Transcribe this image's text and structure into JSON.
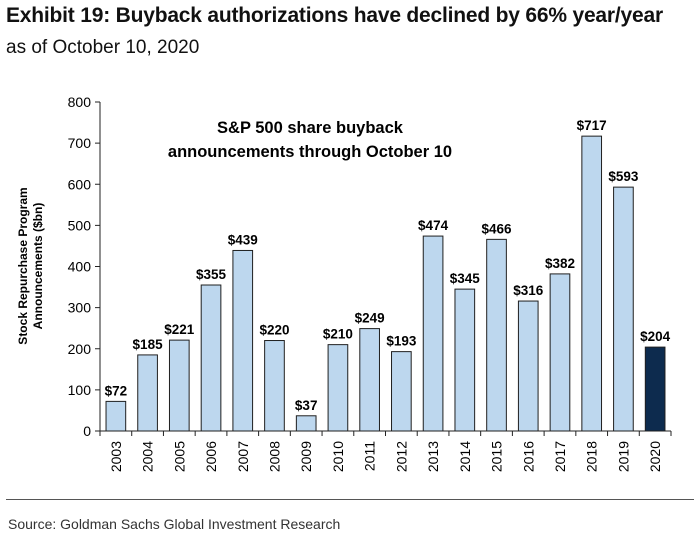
{
  "exhibit": {
    "title": "Exhibit 19: Buyback authorizations have declined by 66% year/year",
    "subtitle": "as of October 10, 2020"
  },
  "source": "Source: Goldman Sachs Global Investment Research",
  "colors": {
    "bar": "#bdd7ee",
    "highlight": "#0d2b4e",
    "outline": "#1f1f1f"
  },
  "chart_data": {
    "type": "bar",
    "title_lines": [
      "S&P 500 share buyback",
      "announcements through October 10"
    ],
    "ylabel_lines": [
      "Stock Repurchase Program",
      "Announcements ($bn)"
    ],
    "xlabel": "",
    "ylim": [
      0,
      800
    ],
    "yticks": [
      0,
      100,
      200,
      300,
      400,
      500,
      600,
      700,
      800
    ],
    "grid": false,
    "categories": [
      "2003",
      "2004",
      "2005",
      "2006",
      "2007",
      "2008",
      "2009",
      "2010",
      "2011",
      "2012",
      "2013",
      "2014",
      "2015",
      "2016",
      "2017",
      "2018",
      "2019",
      "2020"
    ],
    "values": [
      72,
      185,
      221,
      355,
      439,
      220,
      37,
      210,
      249,
      193,
      474,
      345,
      466,
      316,
      382,
      717,
      593,
      204
    ],
    "data_labels": [
      "$72",
      "$185",
      "$221",
      "$355",
      "$439",
      "$220",
      "$37",
      "$210",
      "$249",
      "$193",
      "$474",
      "$345",
      "$466",
      "$316",
      "$382",
      "$717",
      "$593",
      "$204"
    ],
    "highlight_category": "2020"
  }
}
